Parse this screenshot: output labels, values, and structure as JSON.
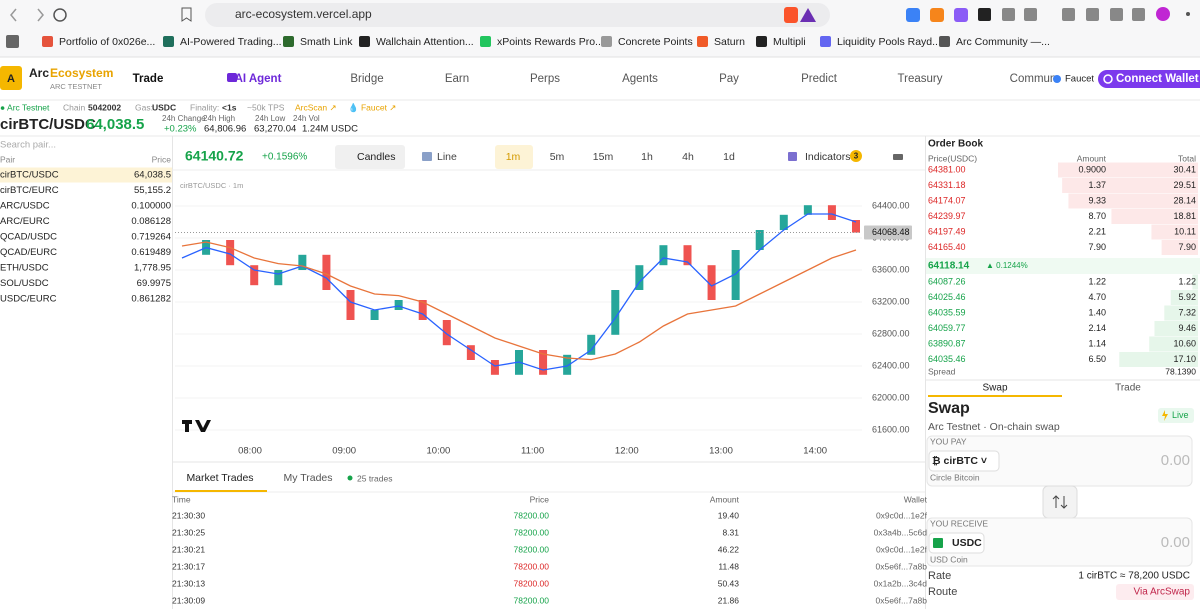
{
  "browser": {
    "url": "arc-ecosystem.vercel.app",
    "bookmarks": [
      "Portfolio of 0x026e...",
      "AI-Powered Trading...",
      "Smath Link",
      "Wallchain Attention...",
      "xPoints Rewards Pro...",
      "Concrete Points",
      "Saturn",
      "Multipli",
      "Liquidity Pools Rayd...",
      "Arc Community —..."
    ]
  },
  "nav": {
    "logo": "A",
    "brand_a": "Arc",
    "brand_b": "Ecosystem",
    "brand_sub": "ARC TESTNET",
    "items": [
      "Trade",
      "AI Agent",
      "Bridge",
      "Earn",
      "Perps",
      "Agents",
      "Pay",
      "Predict",
      "Treasury",
      "Commun"
    ],
    "faucet": "Faucet",
    "connect": "Connect Wallet"
  },
  "status": {
    "network": "● Arc Testnet",
    "chain_label": "Chain",
    "chain": "5042002",
    "gas_label": "Gas:",
    "gas": "USDC",
    "finality_label": "Finality:",
    "finality": "<1s",
    "tps": "~50k TPS",
    "arcscan": "ArcScan ↗",
    "faucet": "💧 Faucet ↗"
  },
  "ticker": {
    "pair": "cirBTC/USDC",
    "price": "64,038.5",
    "stats": [
      {
        "label": "24h Change",
        "value": "+0.23%"
      },
      {
        "label": "24h High",
        "value": "64,806.96"
      },
      {
        "label": "24h Low",
        "value": "63,270.04"
      },
      {
        "label": "24h Vol",
        "value": "1.24M USDC"
      }
    ]
  },
  "pairs": {
    "search": "Search pair...",
    "header": [
      "Pair",
      "Price"
    ],
    "rows": [
      [
        "cirBTC/USDC",
        "64,038.5"
      ],
      [
        "cirBTC/EURC",
        "55,155.2"
      ],
      [
        "ARC/USDC",
        "0.100000"
      ],
      [
        "ARC/EURC",
        "0.086128"
      ],
      [
        "QCAD/USDC",
        "0.719264"
      ],
      [
        "QCAD/EURC",
        "0.619489"
      ],
      [
        "ETH/USDC",
        "1,778.95"
      ],
      [
        "SOL/USDC",
        "69.9975"
      ],
      [
        "USDC/EURC",
        "0.861282"
      ]
    ]
  },
  "chart_data": {
    "type": "candlestick",
    "price": "64140.72",
    "change": "+0.1596%",
    "modes": [
      "Candles",
      "Line"
    ],
    "timeframes": [
      "1m",
      "5m",
      "15m",
      "1h",
      "4h",
      "1d"
    ],
    "indicators": "Indicators",
    "indicator_count": "3",
    "symbol": "cirBTC/USDC · 1m",
    "last": 64068.48,
    "ylim": [
      61537.5,
      64750
    ],
    "yticks": [
      {
        "value": 64400,
        "label": "64400.00"
      },
      {
        "value": 64000,
        "label": "64000.00"
      },
      {
        "value": 63600,
        "label": "63600.00"
      },
      {
        "value": 63200,
        "label": "63200.00"
      },
      {
        "value": 62800,
        "label": "62800.00"
      },
      {
        "value": 62400,
        "label": "62400.00"
      },
      {
        "value": 62000,
        "label": "62000.00"
      },
      {
        "value": 61600,
        "label": "61600.00"
      }
    ],
    "xticks": [
      "08:00",
      "09:00",
      "10:00",
      "11:00",
      "12:00",
      "13:00",
      "14:00"
    ],
    "up_color": "#26a69a",
    "down_color": "#ef5350",
    "closes": [
      63790,
      63975,
      63660,
      63410,
      63600,
      63790,
      63350,
      62975,
      63100,
      63225,
      62975,
      62660,
      62475,
      62290,
      62600,
      62290,
      62540,
      62790,
      63350,
      63660,
      63910,
      63660,
      63225,
      63850,
      64100,
      64290,
      64410,
      64225,
      64068
    ],
    "series": [
      {
        "color": "#2962ff",
        "values": [
          63750,
          63880,
          63800,
          63600,
          63550,
          63650,
          63500,
          63200,
          63100,
          63150,
          63050,
          62800,
          62600,
          62400,
          62450,
          62350,
          62400,
          62600,
          63000,
          63450,
          63750,
          63700,
          63400,
          63550,
          63850,
          64100,
          64300,
          64300,
          64200
        ]
      },
      {
        "color": "#e8743b",
        "values": [
          63900,
          63950,
          63880,
          63750,
          63680,
          63650,
          63550,
          63400,
          63300,
          63280,
          63200,
          63050,
          62900,
          62750,
          62650,
          62550,
          62500,
          62480,
          62550,
          62700,
          62900,
          63050,
          63100,
          63150,
          63300,
          63450,
          63600,
          63750,
          63850
        ]
      }
    ]
  },
  "trades": {
    "tabs": [
      "Market Trades",
      "My Trades"
    ],
    "count": "25 trades",
    "header": [
      "Time",
      "Price",
      "Amount",
      "Wallet"
    ],
    "rows": [
      {
        "cells": [
          "21:30:30",
          "78200.00",
          "19.40",
          "0x9c0d...1e2f"
        ],
        "color": "#16a34a"
      },
      {
        "cells": [
          "21:30:25",
          "78200.00",
          "8.31",
          "0x3a4b...5c6d"
        ],
        "color": "#16a34a"
      },
      {
        "cells": [
          "21:30:21",
          "78200.00",
          "46.22",
          "0x9c0d...1e2f"
        ],
        "color": "#16a34a"
      },
      {
        "cells": [
          "21:30:17",
          "78200.00",
          "11.48",
          "0x5e6f...7a8b"
        ],
        "color": "#dc2626"
      },
      {
        "cells": [
          "21:30:13",
          "78200.00",
          "50.43",
          "0x1a2b...3c4d"
        ],
        "color": "#dc2626"
      },
      {
        "cells": [
          "21:30:09",
          "78200.00",
          "21.86",
          "0x5e6f...7a8b"
        ],
        "color": "#16a34a"
      }
    ]
  },
  "orderbook": {
    "title": "Order Book",
    "header": [
      "Price(USDC)",
      "Amount",
      "Total"
    ],
    "asks": [
      [
        "64381.00",
        "0.9000",
        "30.41"
      ],
      [
        "64331.18",
        "1.37",
        "29.51"
      ],
      [
        "64174.07",
        "9.33",
        "28.14"
      ],
      [
        "64239.97",
        "8.70",
        "18.81"
      ],
      [
        "64197.49",
        "2.21",
        "10.11"
      ],
      [
        "64165.40",
        "7.90",
        "7.90"
      ]
    ],
    "mid": "64118.14",
    "mid_change": "▲ 0.1244%",
    "bids": [
      [
        "64087.26",
        "1.22",
        "1.22"
      ],
      [
        "64025.46",
        "4.70",
        "5.92"
      ],
      [
        "64035.59",
        "1.40",
        "7.32"
      ],
      [
        "64059.77",
        "2.14",
        "9.46"
      ],
      [
        "63890.87",
        "1.14",
        "10.60"
      ],
      [
        "64035.46",
        "6.50",
        "17.10"
      ]
    ],
    "spread_label": "Spread",
    "spread": "78.1390"
  },
  "swap": {
    "tabs": [
      "Swap",
      "Trade"
    ],
    "title": "Swap",
    "live": "Live",
    "subtitle": "Arc Testnet · On-chain swap",
    "pay_label": "YOU PAY",
    "pay_token": "₿  cirBTC  ˅",
    "pay_amount": "0.00",
    "pay_name": "Circle Bitcoin",
    "receive_label": "YOU RECEIVE",
    "receive_token": "USDC",
    "receive_amount": "0.00",
    "receive_name": "USD Coin",
    "rate_label": "Rate",
    "rate": "1 cirBTC ≈ 78,200 USDC",
    "route_label": "Route",
    "route": "Via ArcSwap"
  }
}
